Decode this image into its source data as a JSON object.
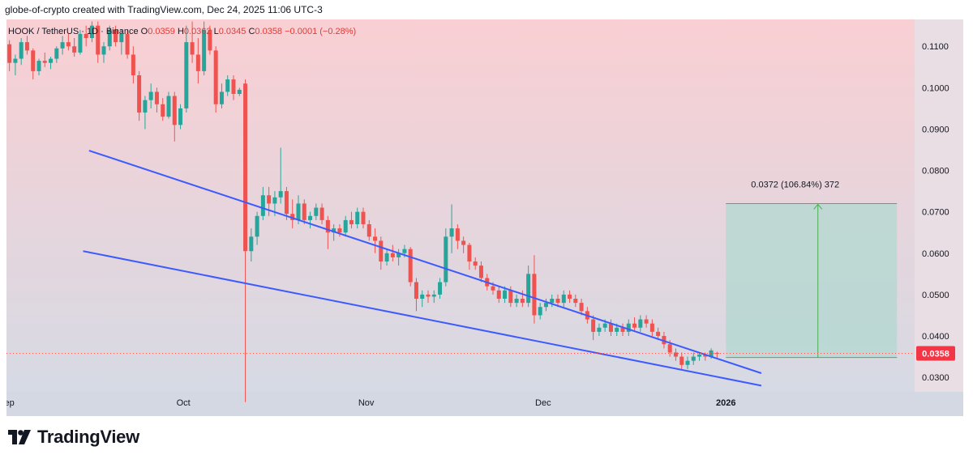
{
  "header": {
    "attribution": "globe-of-crypto created with TradingView.com, Dec 24, 2025 11:06 UTC-3"
  },
  "legend": {
    "symbol": "HOOK / TetherUS · 1D · Binance",
    "open_label": "O",
    "open": "0.0359",
    "high_label": "H",
    "high": "0.0362",
    "low_label": "L",
    "low": "0.0345",
    "close_label": "C",
    "close": "0.0358",
    "change": "−0.0001 (−0.28%)"
  },
  "price_badge": "0.0358",
  "measure_label": "0.0372 (106.84%) 372",
  "branding": {
    "name": "TradingView",
    "logo_icon": "tradingview-logo-icon"
  },
  "colors": {
    "up": "#26a69a",
    "down": "#ef5350",
    "trendline": "#3d5afe",
    "badge": "#f23645",
    "measure_fill": "#b2d8d0",
    "measure_border": "#4caf50",
    "bg_top": "#f9cfd3",
    "bg_bottom": "#d6dae4"
  },
  "chart_data": {
    "type": "candlestick",
    "title": "HOOK / TetherUS · 1D · Binance",
    "xlabel": "",
    "ylabel": "",
    "x_ticks": [
      {
        "label": "Sep",
        "day": 0
      },
      {
        "label": "Oct",
        "day": 30
      },
      {
        "label": "Nov",
        "day": 61
      },
      {
        "label": "Dec",
        "day": 91
      },
      {
        "label": "2026",
        "day": 122
      }
    ],
    "y_ticks": [
      "0.0300",
      "0.0400",
      "0.0500",
      "0.0600",
      "0.0700",
      "0.0800",
      "0.0900",
      "0.1000",
      "0.1100"
    ],
    "ylim": [
      0.0265,
      0.1165
    ],
    "xlim_days": [
      0,
      154
    ],
    "grid": false,
    "current_price": 0.0358,
    "candles": [
      [
        0.1105,
        0.1115,
        0.104,
        0.106
      ],
      [
        0.106,
        0.108,
        0.103,
        0.107
      ],
      [
        0.107,
        0.112,
        0.1055,
        0.111
      ],
      [
        0.111,
        0.1125,
        0.108,
        0.109
      ],
      [
        0.109,
        0.1095,
        0.102,
        0.104
      ],
      [
        0.104,
        0.107,
        0.103,
        0.1065
      ],
      [
        0.1065,
        0.1085,
        0.105,
        0.106
      ],
      [
        0.106,
        0.1075,
        0.1045,
        0.107
      ],
      [
        0.107,
        0.11,
        0.106,
        0.1095
      ],
      [
        0.1095,
        0.1125,
        0.108,
        0.111
      ],
      [
        0.111,
        0.113,
        0.109,
        0.11
      ],
      [
        0.11,
        0.112,
        0.1075,
        0.1085
      ],
      [
        0.1085,
        0.114,
        0.108,
        0.113
      ],
      [
        0.113,
        0.115,
        0.11,
        0.112
      ],
      [
        0.112,
        0.116,
        0.111,
        0.115
      ],
      [
        0.115,
        0.116,
        0.106,
        0.108
      ],
      [
        0.108,
        0.111,
        0.106,
        0.11
      ],
      [
        0.11,
        0.115,
        0.109,
        0.114
      ],
      [
        0.114,
        0.115,
        0.11,
        0.111
      ],
      [
        0.111,
        0.114,
        0.108,
        0.113
      ],
      [
        0.113,
        0.114,
        0.107,
        0.108
      ],
      [
        0.108,
        0.11,
        0.101,
        0.103
      ],
      [
        0.103,
        0.104,
        0.092,
        0.094
      ],
      [
        0.094,
        0.098,
        0.09,
        0.097
      ],
      [
        0.097,
        0.101,
        0.095,
        0.099
      ],
      [
        0.099,
        0.1,
        0.094,
        0.096
      ],
      [
        0.096,
        0.0975,
        0.092,
        0.093
      ],
      [
        0.093,
        0.099,
        0.0925,
        0.098
      ],
      [
        0.098,
        0.099,
        0.087,
        0.091
      ],
      [
        0.091,
        0.096,
        0.09,
        0.095
      ],
      [
        0.095,
        0.115,
        0.094,
        0.111
      ],
      [
        0.111,
        0.116,
        0.106,
        0.108
      ],
      [
        0.108,
        0.112,
        0.101,
        0.104
      ],
      [
        0.104,
        0.116,
        0.103,
        0.114
      ],
      [
        0.114,
        0.115,
        0.108,
        0.109
      ],
      [
        0.109,
        0.11,
        0.094,
        0.096
      ],
      [
        0.096,
        0.101,
        0.095,
        0.099
      ],
      [
        0.099,
        0.103,
        0.098,
        0.102
      ],
      [
        0.102,
        0.103,
        0.097,
        0.0985
      ],
      [
        0.0985,
        0.1,
        0.098,
        0.0995
      ],
      [
        0.101,
        0.102,
        0.024,
        0.0605
      ],
      [
        0.0605,
        0.066,
        0.058,
        0.064
      ],
      [
        0.064,
        0.07,
        0.062,
        0.069
      ],
      [
        0.069,
        0.076,
        0.068,
        0.074
      ],
      [
        0.074,
        0.076,
        0.069,
        0.072
      ],
      [
        0.072,
        0.075,
        0.069,
        0.0735
      ],
      [
        0.0735,
        0.0855,
        0.072,
        0.075
      ],
      [
        0.075,
        0.076,
        0.068,
        0.0695
      ],
      [
        0.0695,
        0.073,
        0.066,
        0.068
      ],
      [
        0.068,
        0.074,
        0.067,
        0.072
      ],
      [
        0.072,
        0.073,
        0.067,
        0.068
      ],
      [
        0.068,
        0.07,
        0.066,
        0.069
      ],
      [
        0.069,
        0.072,
        0.068,
        0.071
      ],
      [
        0.071,
        0.072,
        0.067,
        0.068
      ],
      [
        0.068,
        0.069,
        0.061,
        0.065
      ],
      [
        0.065,
        0.067,
        0.063,
        0.066
      ],
      [
        0.066,
        0.067,
        0.064,
        0.065
      ],
      [
        0.065,
        0.069,
        0.064,
        0.068
      ],
      [
        0.068,
        0.07,
        0.066,
        0.067
      ],
      [
        0.067,
        0.071,
        0.066,
        0.07
      ],
      [
        0.07,
        0.071,
        0.066,
        0.067
      ],
      [
        0.067,
        0.068,
        0.063,
        0.064
      ],
      [
        0.064,
        0.066,
        0.06,
        0.063
      ],
      [
        0.063,
        0.064,
        0.056,
        0.058
      ],
      [
        0.058,
        0.061,
        0.057,
        0.06
      ],
      [
        0.06,
        0.062,
        0.058,
        0.059
      ],
      [
        0.059,
        0.061,
        0.057,
        0.06
      ],
      [
        0.06,
        0.062,
        0.059,
        0.061
      ],
      [
        0.061,
        0.0615,
        0.052,
        0.053
      ],
      [
        0.053,
        0.054,
        0.046,
        0.049
      ],
      [
        0.049,
        0.051,
        0.047,
        0.05
      ],
      [
        0.05,
        0.051,
        0.048,
        0.0495
      ],
      [
        0.0495,
        0.051,
        0.048,
        0.05
      ],
      [
        0.05,
        0.054,
        0.049,
        0.053
      ],
      [
        0.053,
        0.066,
        0.052,
        0.064
      ],
      [
        0.064,
        0.0718,
        0.06,
        0.066
      ],
      [
        0.066,
        0.067,
        0.061,
        0.063
      ],
      [
        0.063,
        0.064,
        0.06,
        0.062
      ],
      [
        0.062,
        0.0625,
        0.056,
        0.058
      ],
      [
        0.058,
        0.059,
        0.056,
        0.057
      ],
      [
        0.057,
        0.058,
        0.053,
        0.054
      ],
      [
        0.054,
        0.055,
        0.051,
        0.052
      ],
      [
        0.052,
        0.053,
        0.05,
        0.051
      ],
      [
        0.051,
        0.052,
        0.048,
        0.049
      ],
      [
        0.049,
        0.052,
        0.048,
        0.051
      ],
      [
        0.051,
        0.052,
        0.047,
        0.048
      ],
      [
        0.048,
        0.05,
        0.047,
        0.049
      ],
      [
        0.049,
        0.051,
        0.047,
        0.048
      ],
      [
        0.048,
        0.057,
        0.047,
        0.055
      ],
      [
        0.055,
        0.0595,
        0.043,
        0.045
      ],
      [
        0.045,
        0.048,
        0.044,
        0.047
      ],
      [
        0.047,
        0.049,
        0.046,
        0.048
      ],
      [
        0.048,
        0.05,
        0.047,
        0.049
      ],
      [
        0.049,
        0.05,
        0.047,
        0.048
      ],
      [
        0.048,
        0.051,
        0.047,
        0.05
      ],
      [
        0.05,
        0.051,
        0.048,
        0.049
      ],
      [
        0.049,
        0.05,
        0.047,
        0.048
      ],
      [
        0.048,
        0.049,
        0.045,
        0.046
      ],
      [
        0.046,
        0.047,
        0.043,
        0.044
      ],
      [
        0.044,
        0.045,
        0.039,
        0.041
      ],
      [
        0.041,
        0.043,
        0.04,
        0.042
      ],
      [
        0.042,
        0.044,
        0.041,
        0.043
      ],
      [
        0.043,
        0.044,
        0.04,
        0.041
      ],
      [
        0.041,
        0.043,
        0.04,
        0.042
      ],
      [
        0.042,
        0.043,
        0.04,
        0.041
      ],
      [
        0.041,
        0.044,
        0.04,
        0.043
      ],
      [
        0.043,
        0.0445,
        0.041,
        0.042
      ],
      [
        0.042,
        0.045,
        0.041,
        0.044
      ],
      [
        0.044,
        0.045,
        0.042,
        0.043
      ],
      [
        0.043,
        0.044,
        0.04,
        0.041
      ],
      [
        0.041,
        0.042,
        0.039,
        0.04
      ],
      [
        0.04,
        0.041,
        0.037,
        0.038
      ],
      [
        0.038,
        0.039,
        0.035,
        0.036
      ],
      [
        0.036,
        0.037,
        0.034,
        0.035
      ],
      [
        0.035,
        0.036,
        0.032,
        0.033
      ],
      [
        0.033,
        0.035,
        0.032,
        0.034
      ],
      [
        0.034,
        0.036,
        0.033,
        0.035
      ],
      [
        0.035,
        0.036,
        0.034,
        0.0355
      ],
      [
        0.0355,
        0.036,
        0.034,
        0.035
      ],
      [
        0.035,
        0.037,
        0.0345,
        0.0365
      ],
      [
        0.0359,
        0.0362,
        0.0345,
        0.0358
      ]
    ],
    "trendlines": [
      {
        "name": "upper",
        "from": [
          14,
          0.0848
        ],
        "to": [
          128,
          0.031
        ]
      },
      {
        "name": "lower",
        "from": [
          13,
          0.0605
        ],
        "to": [
          128,
          0.028
        ]
      }
    ],
    "measure": {
      "from_day": 122,
      "to_day": 151,
      "from_price": 0.0348,
      "to_price": 0.072,
      "label": "0.0372 (106.84%) 372"
    }
  }
}
